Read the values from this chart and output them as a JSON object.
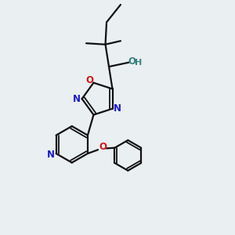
{
  "bg_color": "#eaeff1",
  "bond_color": "#111111",
  "N_color": "#1a1acc",
  "O_color": "#cc1a1a",
  "O_teal_color": "#3d8080",
  "figsize": [
    3.0,
    3.0
  ],
  "dpi": 100,
  "xlim": [
    0,
    10
  ],
  "ylim": [
    0,
    10
  ]
}
